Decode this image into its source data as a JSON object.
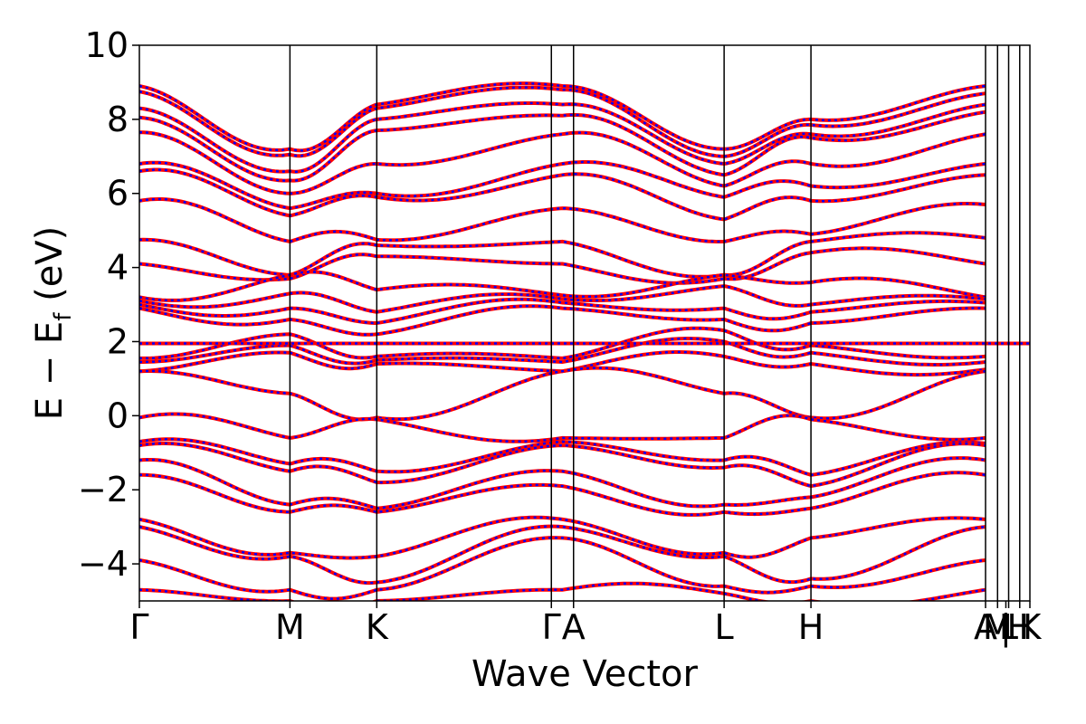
{
  "chart_data": {
    "type": "line",
    "xlabel": "Wave Vector",
    "ylabel": {
      "main": "E − E",
      "sub": "f",
      "unit": " (eV)"
    },
    "ylim": [
      -5,
      10
    ],
    "yticks": [
      {
        "value": 10,
        "label": "10"
      },
      {
        "value": 8,
        "label": "8"
      },
      {
        "value": 6,
        "label": "6"
      },
      {
        "value": 4,
        "label": "4"
      },
      {
        "value": 2,
        "label": "2"
      },
      {
        "value": 0,
        "label": "0"
      },
      {
        "value": -2,
        "label": "−2"
      },
      {
        "value": -4,
        "label": "−4"
      }
    ],
    "xlim": [
      0,
      4.82
    ],
    "kpoints": [
      {
        "label": "Γ",
        "x": 0.0
      },
      {
        "label": "M",
        "x": 0.815
      },
      {
        "label": "K",
        "x": 1.285
      },
      {
        "label": "Γ",
        "x": 2.23
      },
      {
        "label": "A",
        "x": 2.35
      },
      {
        "label": "L",
        "x": 3.165
      },
      {
        "label": "H",
        "x": 3.635
      },
      {
        "label": "A",
        "x": 4.58
      },
      {
        "label": "M",
        "x": 4.645
      },
      {
        "label": "|",
        "x": 4.69
      },
      {
        "label": "L",
        "x": 4.705
      },
      {
        "label": "H",
        "x": 4.765
      },
      {
        "label": "K",
        "x": 4.82
      }
    ],
    "grid": false,
    "legend": "none",
    "series_style": [
      {
        "color": "#ff0000",
        "style": "solid"
      },
      {
        "color": "#0000ff",
        "style": "dotted"
      }
    ],
    "flat_band_energy": 1.95,
    "bands": [
      {
        "G": 8.9,
        "M": 7.2,
        "K": 8.4,
        "G2": 8.9,
        "L": 7.2,
        "H": 8.0,
        "A": 8.9
      },
      {
        "G": 8.75,
        "M": 7.05,
        "K": 8.3,
        "G2": 8.8,
        "L": 7.0,
        "H": 7.85,
        "A": 8.7
      },
      {
        "G": 8.3,
        "M": 6.6,
        "K": 8.0,
        "G2": 8.4,
        "L": 6.8,
        "H": 7.6,
        "A": 8.4
      },
      {
        "G": 8.05,
        "M": 6.35,
        "K": 7.7,
        "G2": 8.1,
        "L": 6.5,
        "H": 7.5,
        "A": 8.2
      },
      {
        "G": 7.65,
        "M": 6.0,
        "K": 6.8,
        "G2": 7.6,
        "L": 6.2,
        "H": 6.8,
        "A": 7.6
      },
      {
        "G": 6.8,
        "M": 5.6,
        "K": 6.0,
        "G2": 6.8,
        "L": 5.9,
        "H": 6.2,
        "A": 6.8
      },
      {
        "G": 6.6,
        "M": 5.4,
        "K": 5.9,
        "G2": 6.5,
        "L": 5.3,
        "H": 5.8,
        "A": 6.5
      },
      {
        "G": 5.8,
        "M": 4.7,
        "K": 4.75,
        "G2": 5.6,
        "L": 4.7,
        "H": 4.9,
        "A": 5.7
      },
      {
        "G": 4.75,
        "M": 3.8,
        "K": 4.6,
        "G2": 4.7,
        "L": 3.8,
        "H": 4.7,
        "A": 4.8
      },
      {
        "G": 4.1,
        "M": 3.7,
        "K": 4.3,
        "G2": 4.1,
        "L": 3.7,
        "H": 4.4,
        "A": 4.1
      },
      {
        "G": 3.2,
        "M": 3.8,
        "K": 3.4,
        "G2": 3.25,
        "L": 3.8,
        "H": 3.6,
        "A": 3.2
      },
      {
        "G": 3.1,
        "M": 3.3,
        "K": 2.8,
        "G2": 3.15,
        "L": 3.5,
        "H": 3.0,
        "A": 3.15
      },
      {
        "G": 3.0,
        "M": 2.9,
        "K": 2.5,
        "G2": 3.05,
        "L": 2.9,
        "H": 2.8,
        "A": 3.05
      },
      {
        "G": 2.9,
        "M": 2.6,
        "K": 2.2,
        "G2": 2.9,
        "L": 2.6,
        "H": 2.5,
        "A": 2.9
      },
      {
        "G": 1.55,
        "M": 2.2,
        "K": 1.6,
        "G2": 1.55,
        "L": 2.3,
        "H": 1.9,
        "A": 1.6
      },
      {
        "G": 1.45,
        "M": 1.9,
        "K": 1.5,
        "G2": 1.45,
        "L": 2.0,
        "H": 1.7,
        "A": 1.45
      },
      {
        "G": 1.2,
        "M": 1.7,
        "K": 1.4,
        "G2": 1.2,
        "L": 1.6,
        "H": 1.4,
        "A": 1.25
      },
      {
        "G": 1.2,
        "M": 0.6,
        "K": -0.05,
        "G2": 1.2,
        "L": 0.6,
        "H": -0.05,
        "A": 1.2
      },
      {
        "G": -0.05,
        "M": -0.6,
        "K": -0.1,
        "G2": -0.6,
        "L": -0.6,
        "H": -0.1,
        "A": -0.6
      },
      {
        "G": -0.7,
        "M": -1.3,
        "K": -1.5,
        "G2": -0.7,
        "L": -1.2,
        "H": -1.6,
        "A": -0.75
      },
      {
        "G": -0.8,
        "M": -1.5,
        "K": -1.8,
        "G2": -0.8,
        "L": -1.4,
        "H": -1.9,
        "A": -0.8
      },
      {
        "G": -1.2,
        "M": -2.4,
        "K": -2.5,
        "G2": -1.5,
        "L": -2.4,
        "H": -2.2,
        "A": -1.2
      },
      {
        "G": -1.6,
        "M": -2.6,
        "K": -2.6,
        "G2": -1.9,
        "L": -2.6,
        "H": -2.5,
        "A": -1.6
      },
      {
        "G": -2.8,
        "M": -3.7,
        "K": -3.8,
        "G2": -2.8,
        "L": -3.7,
        "H": -3.3,
        "A": -2.8
      },
      {
        "G": -3.0,
        "M": -3.8,
        "K": -4.5,
        "G2": -3.0,
        "L": -3.8,
        "H": -4.4,
        "A": -3.0
      },
      {
        "G": -3.9,
        "M": -4.7,
        "K": -4.7,
        "G2": -3.3,
        "L": -4.6,
        "H": -4.6,
        "A": -3.9
      },
      {
        "G": -4.7,
        "M": -5.0,
        "K": -5.0,
        "G2": -4.7,
        "L": -4.8,
        "H": -5.0,
        "A": -4.7
      }
    ]
  }
}
